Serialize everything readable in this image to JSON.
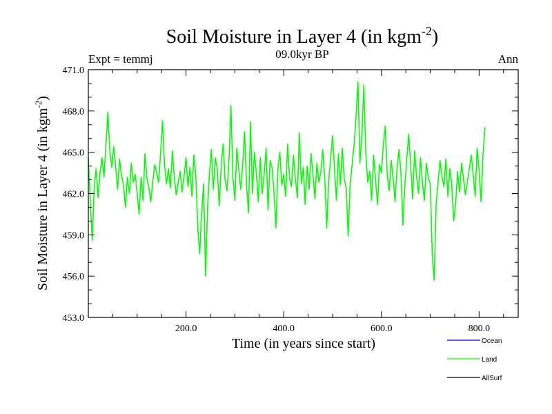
{
  "chart_data": {
    "type": "line",
    "title": {
      "main": "Soil Moisture in Layer 4 (in kgm",
      "sup": "-2",
      "close": ")"
    },
    "subtitle": "09.0kyr BP",
    "left_note": "Expt = temmj",
    "right_note": "Ann",
    "xlabel": "Time (in years since start)",
    "ylabel": {
      "main": "Soil Moisture in Layer 4 (in kgm",
      "sup": "-2",
      "close": ")"
    },
    "xlim": [
      0,
      880
    ],
    "ylim": [
      453.0,
      471.0
    ],
    "x_ticks": [
      200,
      400,
      600,
      800
    ],
    "x_tick_labels": [
      "200.0",
      "400.0",
      "600.0",
      "800.0"
    ],
    "y_ticks": [
      453,
      456,
      459,
      462,
      465,
      468,
      471
    ],
    "y_tick_labels": [
      "453.0",
      "456.0",
      "459.0",
      "462.0",
      "465.0",
      "468.0",
      "471.0"
    ],
    "legend": [
      {
        "name": "Ocean",
        "color": "#0000ff"
      },
      {
        "name": "Land",
        "color": "#00ff00"
      },
      {
        "name": "AllSurf",
        "color": "#000000"
      }
    ],
    "series": [
      {
        "name": "Land",
        "color": "#00ff00",
        "x_start": 0,
        "x_step": 4,
        "values": [
          464.6,
          461.5,
          458.6,
          462.4,
          463.8,
          461.7,
          463.5,
          464.6,
          463.2,
          465.5,
          467.9,
          465.1,
          463.9,
          465.4,
          464.0,
          462.3,
          464.5,
          463.3,
          462.6,
          461.0,
          463.2,
          462.0,
          464.2,
          462.8,
          463.4,
          462.0,
          460.5,
          463.2,
          461.5,
          464.9,
          463.1,
          462.4,
          461.4,
          462.9,
          464.1,
          463.5,
          462.8,
          465.0,
          467.3,
          464.1,
          462.7,
          463.8,
          462.4,
          465.1,
          463.2,
          461.9,
          462.8,
          463.6,
          462.1,
          463.3,
          464.6,
          462.5,
          463.9,
          461.8,
          464.8,
          463.3,
          459.6,
          457.6,
          460.6,
          462.7,
          456.0,
          460.8,
          463.5,
          465.2,
          462.3,
          464.6,
          463.8,
          461.1,
          464.0,
          465.6,
          463.0,
          462.2,
          464.5,
          468.4,
          463.1,
          461.5,
          465.3,
          463.8,
          462.3,
          464.1,
          466.5,
          462.5,
          460.6,
          467.2,
          462.0,
          465.0,
          463.5,
          461.4,
          464.6,
          462.0,
          463.5,
          465.3,
          460.8,
          464.4,
          463.9,
          462.2,
          459.5,
          463.8,
          465.0,
          462.6,
          463.4,
          461.8,
          465.6,
          463.1,
          462.5,
          464.8,
          463.0,
          461.7,
          466.4,
          462.7,
          463.9,
          461.2,
          464.0,
          462.3,
          464.9,
          463.3,
          461.6,
          464.2,
          462.8,
          463.6,
          465.2,
          463.1,
          459.5,
          462.9,
          464.5,
          466.2,
          463.8,
          461.5,
          464.9,
          462.6,
          465.3,
          463.0,
          462.4,
          458.9,
          462.7,
          464.1,
          465.5,
          467.6,
          470.1,
          464.2,
          466.3,
          469.9,
          465.0,
          462.8,
          463.6,
          461.5,
          464.8,
          463.0,
          461.2,
          464.1,
          463.5,
          465.6,
          466.9,
          463.3,
          462.2,
          464.4,
          463.1,
          461.4,
          463.8,
          465.2,
          463.5,
          459.7,
          462.6,
          464.6,
          466.3,
          464.0,
          461.6,
          465.1,
          463.3,
          462.0,
          464.6,
          462.8,
          461.5,
          464.2,
          463.2,
          462.7,
          457.6,
          455.7,
          461.2,
          462.8,
          464.4,
          463.2,
          462.5,
          464.5,
          461.8,
          463.8,
          462.7,
          460.0,
          461.3,
          463.6,
          462.1,
          464.2,
          463.1,
          461.9,
          462.9,
          463.8,
          464.8,
          463.3,
          461.8,
          465.3,
          463.6,
          461.4,
          464.8,
          466.8
        ]
      }
    ]
  }
}
